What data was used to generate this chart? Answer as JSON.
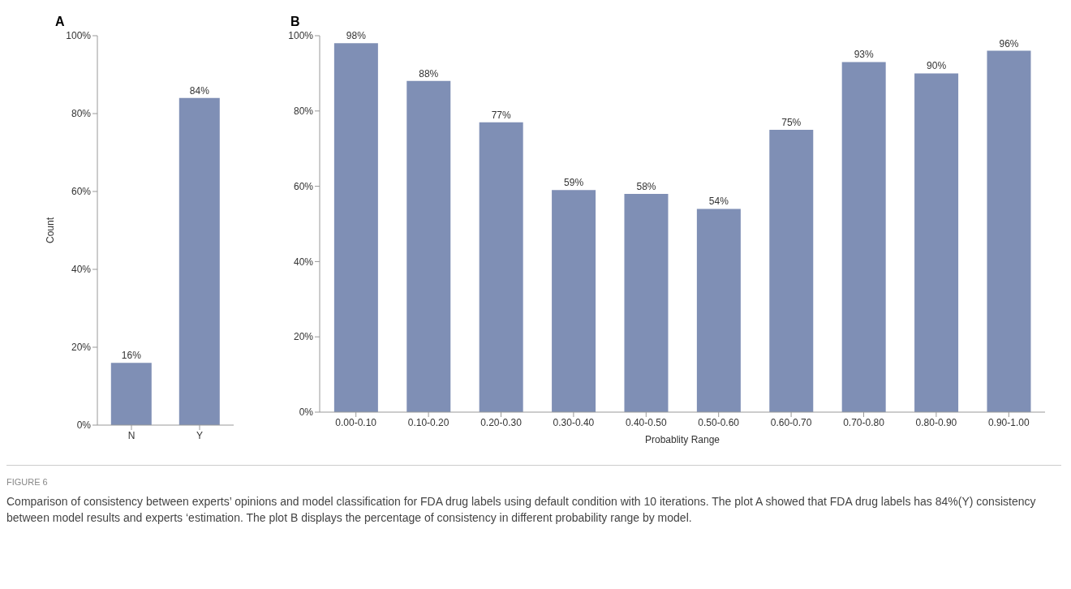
{
  "chart_data": [
    {
      "type": "bar",
      "title": "A",
      "ylabel": "Count",
      "categories": [
        "N",
        "Y"
      ],
      "values": [
        16,
        84
      ],
      "value_labels": [
        "16%",
        "84%"
      ],
      "color": "#7f8fb5",
      "ylim": [
        0,
        100
      ],
      "yticks": [
        {
          "value": 0,
          "label": "0%"
        },
        {
          "value": 20,
          "label": "20%"
        },
        {
          "value": 40,
          "label": "40%"
        },
        {
          "value": 60,
          "label": "60%"
        },
        {
          "value": 80,
          "label": "80%"
        },
        {
          "value": 100,
          "label": "100%"
        }
      ]
    },
    {
      "type": "bar",
      "title": "B",
      "xlabel": "Probablity Range",
      "categories": [
        "0.00-0.10",
        "0.10-0.20",
        "0.20-0.30",
        "0.30-0.40",
        "0.40-0.50",
        "0.50-0.60",
        "0.60-0.70",
        "0.70-0.80",
        "0.80-0.90",
        "0.90-1.00"
      ],
      "values": [
        98,
        88,
        77,
        59,
        58,
        54,
        75,
        93,
        90,
        96
      ],
      "value_labels": [
        "98%",
        "88%",
        "77%",
        "59%",
        "58%",
        "54%",
        "75%",
        "93%",
        "90%",
        "96%"
      ],
      "color": "#7f8fb5",
      "ylim": [
        0,
        100
      ],
      "yticks": [
        {
          "value": 0,
          "label": "0%"
        },
        {
          "value": 20,
          "label": "20%"
        },
        {
          "value": 40,
          "label": "40%"
        },
        {
          "value": 60,
          "label": "60%"
        },
        {
          "value": 80,
          "label": "80%"
        },
        {
          "value": 100,
          "label": "100%"
        }
      ],
      "annotations": [
        "FIGURE 6",
        "Comparison of consistency between experts’ opinions and model classification for FDA drug labels using default condition with 10 iterations. The plot A showed that FDA drug labels has 84%(Y) consistency between model results and experts ‘estimation. The plot B displays the percentage of consistency in different probability range by model."
      ]
    }
  ]
}
